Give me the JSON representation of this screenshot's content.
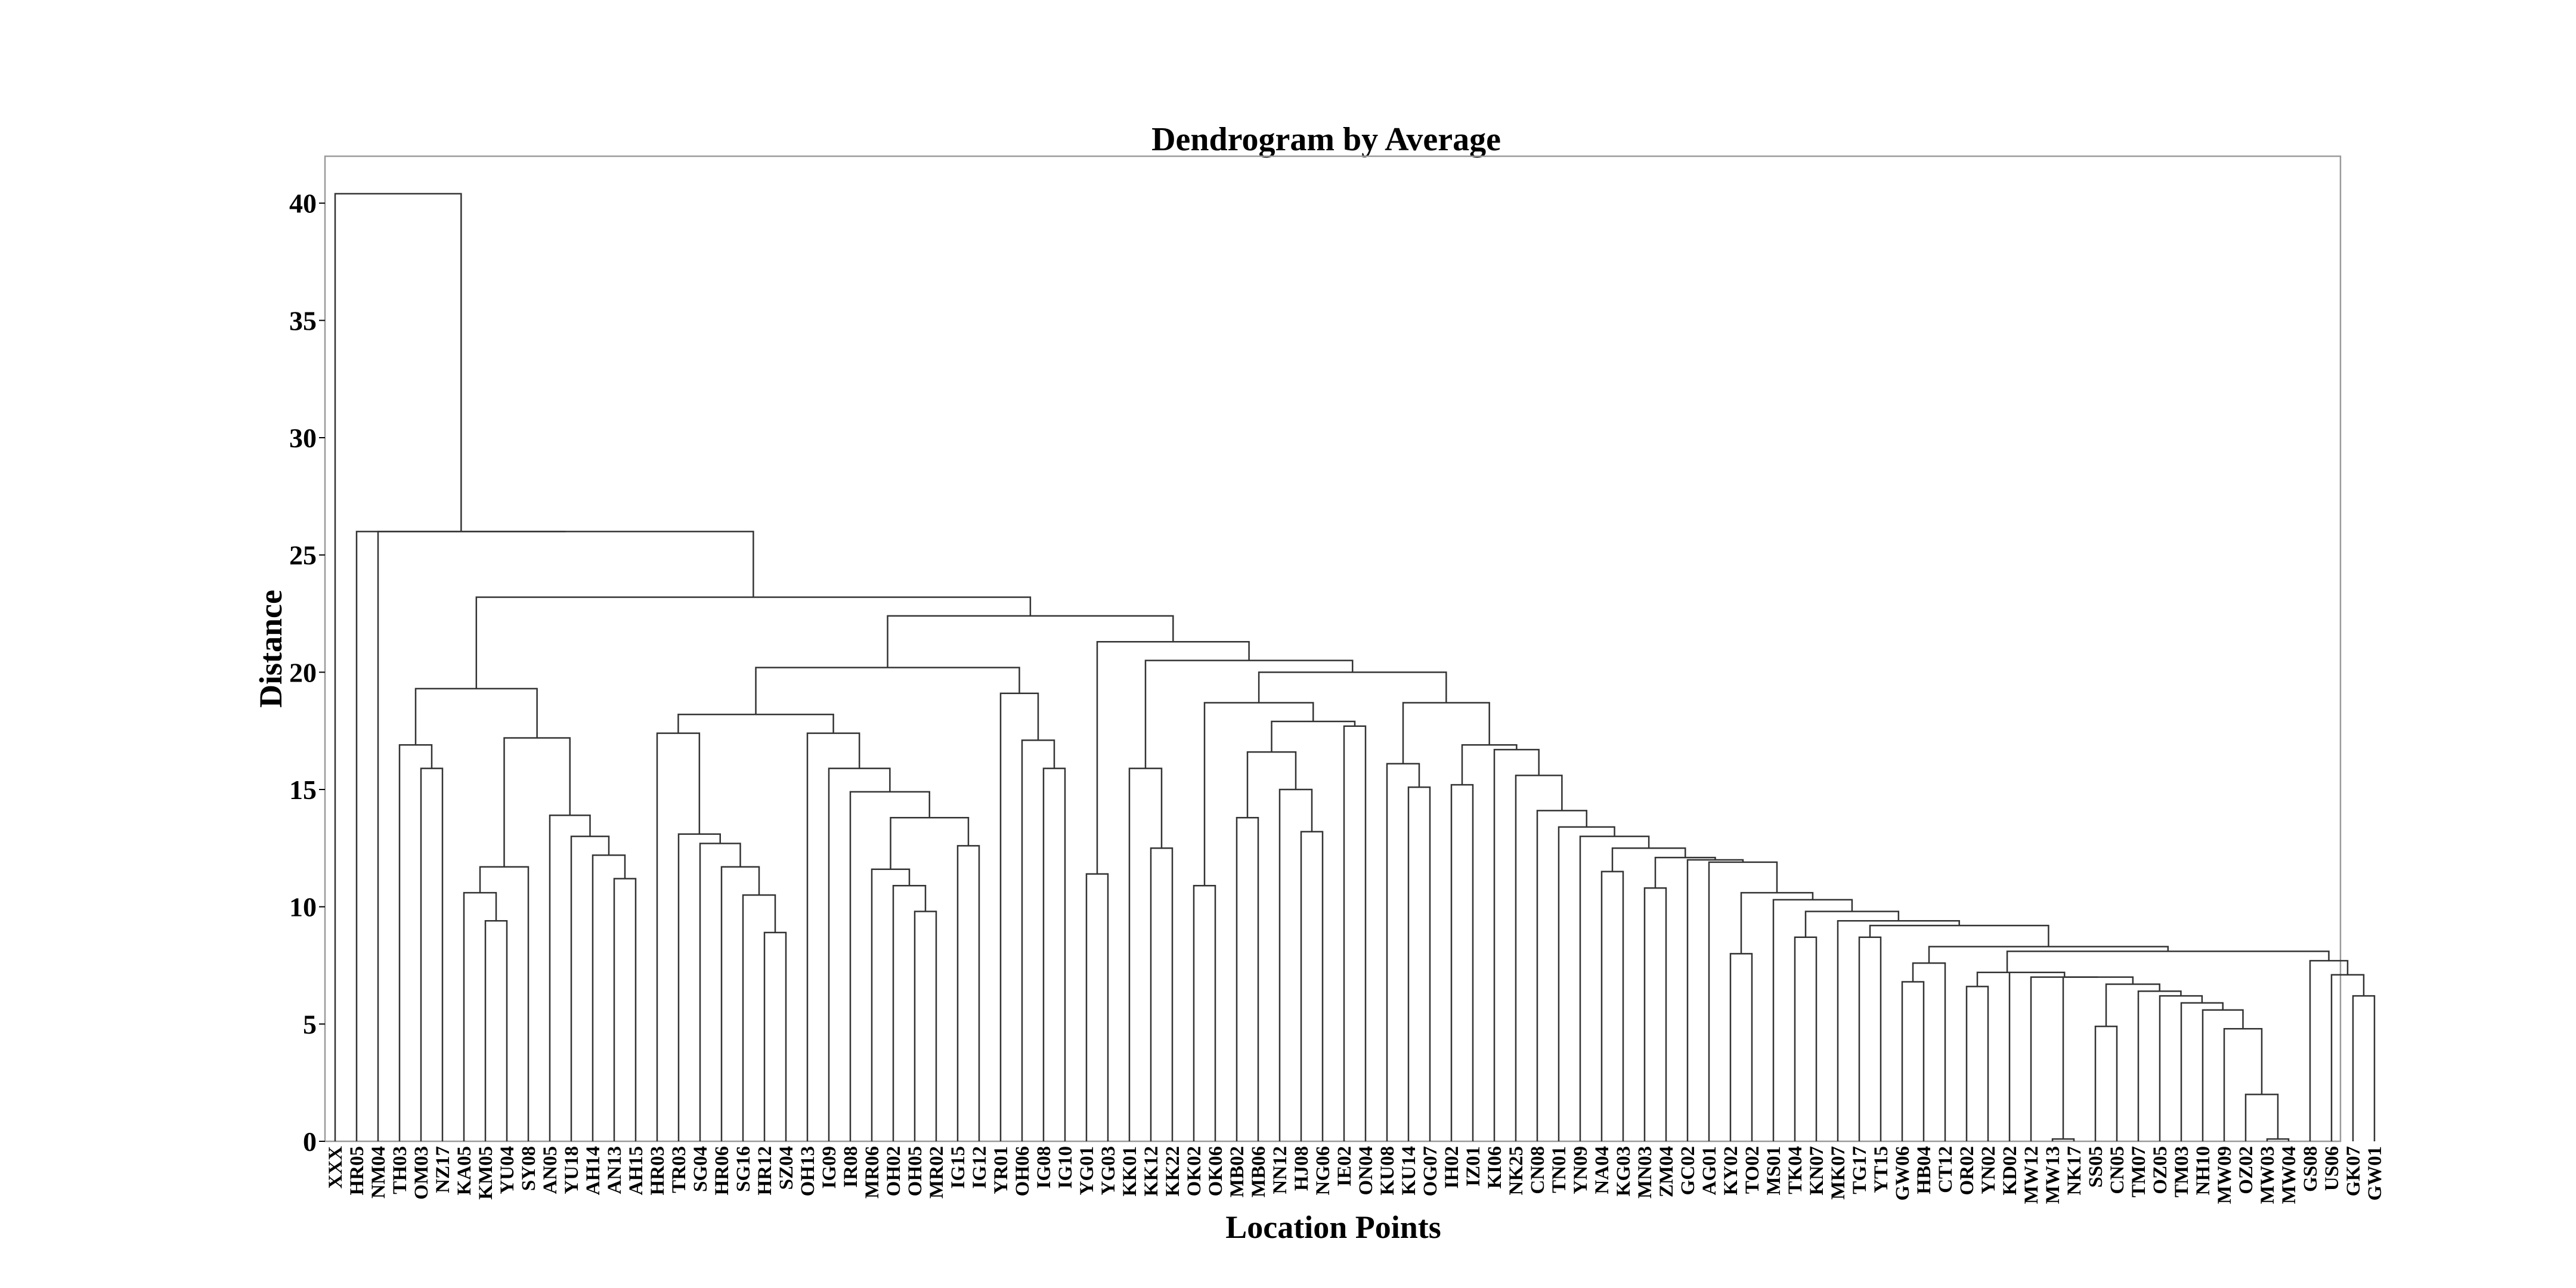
{
  "chart_data": {
    "type": "dendrogram",
    "title": "Dendrogram by Average",
    "xlabel": "Location Points",
    "ylabel": "Distance",
    "ylim": [
      0,
      42
    ],
    "yticks": [
      0,
      5,
      10,
      15,
      20,
      25,
      30,
      35,
      40
    ],
    "grid": false,
    "legend": "none",
    "line_color": "#333333",
    "frame_color": "#9a9a9a",
    "leaves": [
      "XXX",
      "HR05",
      "NM04",
      "TH03",
      "OM03",
      "NZ17",
      "KA05",
      "KM05",
      "YU04",
      "SY08",
      "AN05",
      "YU18",
      "AH14",
      "AN13",
      "AH15",
      "HR03",
      "TR03",
      "SG04",
      "HR06",
      "SG16",
      "HR12",
      "SZ04",
      "OH13",
      "IG09",
      "IR08",
      "MR06",
      "OH02",
      "OH05",
      "MR02",
      "IG15",
      "IG12",
      "YR01",
      "OH06",
      "IG08",
      "IG10",
      "YG01",
      "YG03",
      "KK01",
      "KK12",
      "KK22",
      "OK02",
      "OK06",
      "MB02",
      "MB06",
      "NN12",
      "HJ08",
      "NG06",
      "IE02",
      "ON04",
      "KU08",
      "KU14",
      "OG07",
      "IH02",
      "IZ01",
      "KI06",
      "NK25",
      "CN08",
      "TN01",
      "YN09",
      "NA04",
      "KG03",
      "MN03",
      "ZM04",
      "GC02",
      "AG01",
      "KY02",
      "TO02",
      "MS01",
      "TK04",
      "KN07",
      "MK07",
      "TG17",
      "YT15",
      "GW06",
      "HB04",
      "CT12",
      "OR02",
      "YN02",
      "KD02",
      "MW12",
      "MW13",
      "NK17",
      "SS05",
      "CN05",
      "TM07",
      "OZ05",
      "TM03",
      "NH10",
      "MW09",
      "OZ02",
      "MW03",
      "MW04",
      "GS08",
      "US06",
      "GK07",
      "GW01"
    ],
    "merges": [
      {
        "left": "MW03",
        "right": "MW04",
        "height": 0.1
      },
      {
        "left": "OZ02",
        "right": "c1",
        "height": 2.0
      },
      {
        "left": "MW09",
        "right": "c2",
        "height": 4.8
      },
      {
        "left": "NH10",
        "right": "c3",
        "height": 5.6
      },
      {
        "left": "TM03",
        "right": "c4",
        "height": 5.9
      },
      {
        "left": "OZ05",
        "right": "c5",
        "height": 6.2
      },
      {
        "left": "TM07",
        "right": "c6",
        "height": 6.4
      },
      {
        "left": "SS05",
        "right": "CN05",
        "height": 4.9
      },
      {
        "left": "c8",
        "right": "c7",
        "height": 6.7
      },
      {
        "left": "MW13",
        "right": "NK17",
        "height": 0.1
      },
      {
        "left": "c10",
        "right": "c9",
        "height": 7.0
      },
      {
        "left": "MW12",
        "right": "c11",
        "height": 7.0
      },
      {
        "left": "KD02",
        "right": "c12",
        "height": 7.2
      },
      {
        "left": "YN02",
        "right": "OR02",
        "height": 6.6
      },
      {
        "left": "c14",
        "right": "c13",
        "height": 7.2
      },
      {
        "left": "GK07",
        "right": "GW01",
        "height": 6.2
      },
      {
        "left": "US06",
        "right": "c16",
        "height": 7.1
      },
      {
        "left": "GS08",
        "right": "c17",
        "height": 7.7
      },
      {
        "left": "c15",
        "right": "c18",
        "height": 8.1
      },
      {
        "left": "GW06",
        "right": "HB04",
        "height": 6.8
      },
      {
        "left": "CT12",
        "right": "c20",
        "height": 7.6
      },
      {
        "left": "c21",
        "right": "c19",
        "height": 8.3
      },
      {
        "left": "TG17",
        "right": "YT15",
        "height": 8.7
      },
      {
        "left": "c23",
        "right": "c22",
        "height": 9.2
      },
      {
        "left": "MK07",
        "right": "c24",
        "height": 9.4
      },
      {
        "left": "TK04",
        "right": "KN07",
        "height": 8.7
      },
      {
        "left": "c26",
        "right": "c25",
        "height": 9.8
      },
      {
        "left": "MS01",
        "right": "c27",
        "height": 10.3
      },
      {
        "left": "KY02",
        "right": "TO02",
        "height": 8.0
      },
      {
        "left": "c29",
        "right": "c28",
        "height": 10.6
      },
      {
        "left": "AG01",
        "right": "c30",
        "height": 11.9
      },
      {
        "left": "GC02",
        "right": "c31",
        "height": 12.0
      },
      {
        "left": "MN03",
        "right": "ZM04",
        "height": 10.8
      },
      {
        "left": "c33",
        "right": "c32",
        "height": 12.1
      },
      {
        "left": "NA04",
        "right": "KG03",
        "height": 11.5
      },
      {
        "left": "c35",
        "right": "c34",
        "height": 12.5
      },
      {
        "left": "YN09",
        "right": "c36",
        "height": 13.0
      },
      {
        "left": "TN01",
        "right": "c37",
        "height": 13.4
      },
      {
        "left": "CN08",
        "right": "c38",
        "height": 14.1
      },
      {
        "left": "NK25",
        "right": "c39",
        "height": 15.6
      },
      {
        "left": "KI06",
        "right": "c40",
        "height": 16.7
      },
      {
        "left": "IH02",
        "right": "IZ01",
        "height": 15.2
      },
      {
        "left": "c42",
        "right": "c41",
        "height": 16.9
      },
      {
        "left": "KU14",
        "right": "OG07",
        "height": 15.1
      },
      {
        "left": "KU08",
        "right": "c44",
        "height": 16.1
      },
      {
        "left": "c45",
        "right": "c43",
        "height": 18.7
      },
      {
        "left": "IE02",
        "right": "ON04",
        "height": 17.7
      },
      {
        "left": "HJ08",
        "right": "NG06",
        "height": 13.2
      },
      {
        "left": "NN12",
        "right": "c48",
        "height": 15.0
      },
      {
        "left": "MB02",
        "right": "MB06",
        "height": 13.8
      },
      {
        "left": "c50",
        "right": "c49",
        "height": 16.6
      },
      {
        "left": "c51",
        "right": "c47",
        "height": 17.9
      },
      {
        "left": "OK02",
        "right": "OK06",
        "height": 10.9
      },
      {
        "left": "c53",
        "right": "c52",
        "height": 18.7
      },
      {
        "left": "c54",
        "right": "c46",
        "height": 20.0
      },
      {
        "left": "KK12",
        "right": "KK22",
        "height": 12.5
      },
      {
        "left": "KK01",
        "right": "c56",
        "height": 15.9
      },
      {
        "left": "c57",
        "right": "c55",
        "height": 20.5
      },
      {
        "left": "YG01",
        "right": "YG03",
        "height": 11.4
      },
      {
        "left": "c59",
        "right": "c58",
        "height": 21.3
      },
      {
        "left": "IG08",
        "right": "IG10",
        "height": 15.9
      },
      {
        "left": "OH06",
        "right": "c61",
        "height": 17.1
      },
      {
        "left": "YR01",
        "right": "c62",
        "height": 19.1
      },
      {
        "left": "OH05",
        "right": "MR02",
        "height": 9.8
      },
      {
        "left": "OH02",
        "right": "c64",
        "height": 10.9
      },
      {
        "left": "MR06",
        "right": "c65",
        "height": 11.6
      },
      {
        "left": "IG15",
        "right": "IG12",
        "height": 12.6
      },
      {
        "left": "c66",
        "right": "c67",
        "height": 13.8
      },
      {
        "left": "IR08",
        "right": "c68",
        "height": 14.9
      },
      {
        "left": "IG09",
        "right": "c69",
        "height": 15.9
      },
      {
        "left": "OH13",
        "right": "c70",
        "height": 17.4
      },
      {
        "left": "HR12",
        "right": "SZ04",
        "height": 8.9
      },
      {
        "left": "SG16",
        "right": "c72",
        "height": 10.5
      },
      {
        "left": "HR06",
        "right": "c73",
        "height": 11.7
      },
      {
        "left": "SG04",
        "right": "c74",
        "height": 12.7
      },
      {
        "left": "TR03",
        "right": "c75",
        "height": 13.1
      },
      {
        "left": "HR03",
        "right": "c76",
        "height": 17.4
      },
      {
        "left": "c77",
        "right": "c71",
        "height": 18.2
      },
      {
        "left": "c78",
        "right": "c63",
        "height": 20.2
      },
      {
        "left": "c79",
        "right": "c60",
        "height": 22.4
      },
      {
        "left": "AN13",
        "right": "AH15",
        "height": 11.2
      },
      {
        "left": "AH14",
        "right": "c81",
        "height": 12.2
      },
      {
        "left": "YU18",
        "right": "c82",
        "height": 13.0
      },
      {
        "left": "AN05",
        "right": "c83",
        "height": 13.9
      },
      {
        "left": "KM05",
        "right": "YU04",
        "height": 9.4
      },
      {
        "left": "KA05",
        "right": "c85",
        "height": 10.6
      },
      {
        "left": "SY08",
        "right": "c86",
        "height": 11.7
      },
      {
        "left": "c87",
        "right": "c84",
        "height": 17.2
      },
      {
        "left": "OM03",
        "right": "NZ17",
        "height": 15.9
      },
      {
        "left": "TH03",
        "right": "c89",
        "height": 16.9
      },
      {
        "left": "c90",
        "right": "c88",
        "height": 19.3
      },
      {
        "left": "c91",
        "right": "c80",
        "height": 23.2
      },
      {
        "left": "NM04",
        "right": "c92",
        "height": 26.0
      },
      {
        "left": "HR05",
        "right": "c93",
        "height": 26.0
      },
      {
        "left": "XXX",
        "right": "c94",
        "height": 40.4
      }
    ]
  }
}
